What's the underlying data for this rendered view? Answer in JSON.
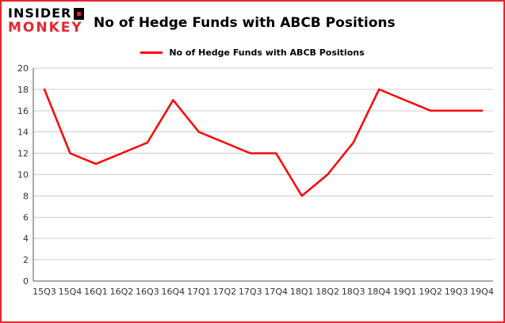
{
  "logo": {
    "line1": "INSIDER",
    "line2": "MONKEY"
  },
  "header": {
    "title": "No of Hedge Funds with ABCB Positions"
  },
  "legend": {
    "label": "No of Hedge Funds with ABCB Positions",
    "color": "#ff0000"
  },
  "colors": {
    "frame_border": "#e5262d",
    "line": "#ff0000",
    "gridline": "#cccccc",
    "axis": "#555555",
    "tick_text": "#333333"
  },
  "chart_data": {
    "type": "line",
    "title": "No of Hedge Funds with ABCB Positions",
    "categories": [
      "15Q3",
      "15Q4",
      "16Q1",
      "16Q2",
      "16Q3",
      "16Q4",
      "17Q1",
      "17Q2",
      "17Q3",
      "17Q4",
      "18Q1",
      "18Q2",
      "18Q3",
      "18Q4",
      "19Q1",
      "19Q2",
      "19Q3",
      "19Q4"
    ],
    "series": [
      {
        "name": "No of Hedge Funds with ABCB Positions",
        "values": [
          18,
          12,
          11,
          12,
          13,
          17,
          14,
          13,
          12,
          12,
          8,
          10,
          13,
          18,
          17,
          16,
          16,
          16
        ],
        "color": "#ff0000"
      }
    ],
    "xlabel": "",
    "ylabel": "",
    "ylim": [
      0,
      20
    ],
    "ytick_step": 2,
    "grid": true,
    "legend_position": "top"
  }
}
